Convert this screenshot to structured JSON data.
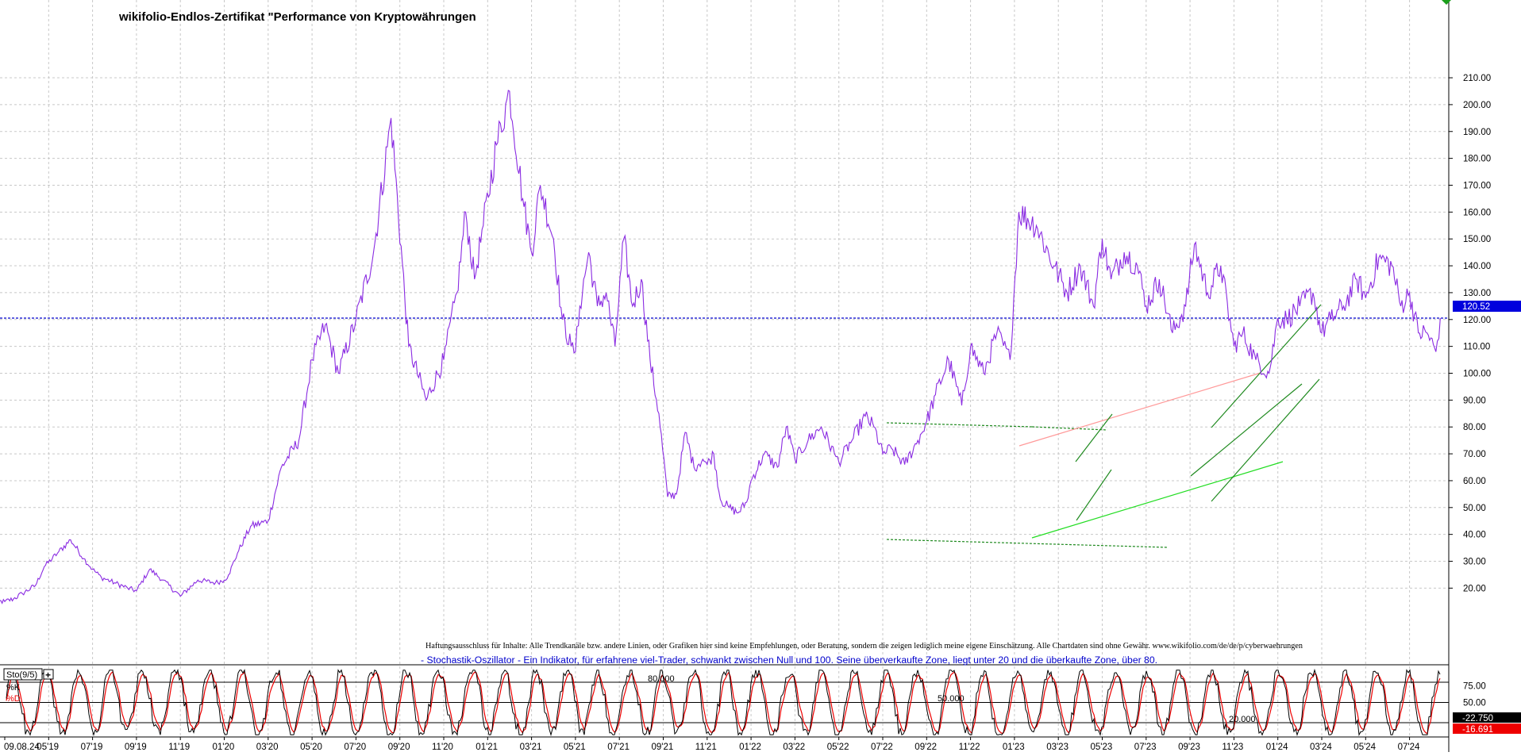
{
  "title": "wikifolio-Endlos-Zertifikat \"Performance von Kryptowährungen",
  "disclaimer": "Haftungsausschluss für Inhalte: Alle Trendkanäle bzw. andere Linien, oder Grafiken hier sind keine Empfehlungen, oder Beratung, sondern die zeigen lediglich meine eigene Einschätzung. Alle Chartdaten sind ohne Gewähr.  www.wikifolio.com/de/de/p/cyberwaehrungen",
  "stochastic_note": "- Stochastik-Oszillator - Ein Indikator, für erfahrene viel-Trader, schwankt zwischen Null und 100. Seine überverkaufte Zone, liegt unter 20 und die überkaufte Zone, über 80.",
  "colors": {
    "price": "#8a2be2",
    "current_line": "#0000cc",
    "current_label_bg": "#0000dd",
    "channel_dark": "#1f8a1f",
    "channel_bright": "#22dd22",
    "pink": "#ff9999",
    "k_line": "#000000",
    "d_line": "#ee0000",
    "grid": "#c8c8c8"
  },
  "chart_data": [
    {
      "type": "line",
      "title": "wikifolio-Endlos-Zertifikat \"Performance von Kryptowährungen",
      "xlabel": "",
      "ylabel": "",
      "x_ticks": [
        "09.08.24",
        "05'19",
        "07'19",
        "09'19",
        "11'19",
        "01'20",
        "03'20",
        "05'20",
        "07'20",
        "09'20",
        "11'20",
        "01'21",
        "03'21",
        "05'21",
        "07'21",
        "09'21",
        "11'21",
        "01'22",
        "03'22",
        "05'22",
        "07'22",
        "09'22",
        "11'22",
        "01'23",
        "03'23",
        "05'23",
        "07'23",
        "09'23",
        "11'23",
        "01'24",
        "03'24",
        "05'24",
        "07'24"
      ],
      "y_ticks": [
        "210.00",
        "200.00",
        "190.00",
        "180.00",
        "170.00",
        "160.00",
        "150.00",
        "140.00",
        "130.00",
        "120.00",
        "110.00",
        "100.00",
        "90.00",
        "80.00",
        "70.00",
        "60.00",
        "50.00",
        "40.00",
        "30.00",
        "20.00"
      ],
      "ylim": [
        12,
        214
      ],
      "grid": true,
      "current_value": 120.52,
      "current_value_label": "120.52",
      "series": [
        {
          "x": [
            -0.3,
            -0.15,
            0,
            0.2,
            0.4,
            0.7,
            0.9,
            1.2,
            1.5,
            1.8,
            2.0,
            2.2,
            2.5,
            2.8,
            3.0,
            3.3,
            3.6,
            4.0,
            4.4,
            4.8,
            5.0,
            5.1,
            5.3,
            5.6,
            6.0,
            6.3,
            6.7,
            7.0,
            7.3,
            7.6,
            8.0,
            8.4,
            8.8,
            9.2,
            9.6,
            10.0,
            10.3,
            10.5,
            10.7,
            10.9,
            11.2,
            11.5,
            11.8,
            12.0,
            12.2,
            12.5,
            12.7,
            12.9,
            13.0,
            13.1,
            13.3,
            13.5,
            13.7,
            13.9,
            14.1,
            14.3,
            14.5,
            14.7,
            14.9,
            15.1,
            15.3,
            15.5,
            15.7,
            15.9,
            16.0,
            16.15,
            16.3,
            16.5,
            16.7,
            16.9,
            17.0,
            17.3,
            17.6,
            17.8,
            18.0,
            18.3,
            18.6,
            18.9,
            19.0,
            19.3,
            19.6,
            19.8,
            20.0,
            20.2,
            20.5,
            20.8,
            21.0,
            21.2,
            21.5,
            21.8,
            22.0,
            22.3,
            22.6,
            22.9,
            23.1,
            23.5,
            23.9,
            24.2,
            24.5,
            24.8,
            25.0,
            25.2,
            25.5,
            25.8,
            26.0,
            26.3,
            26.6,
            26.9,
            27.1,
            27.4,
            27.7,
            28.0,
            28.2,
            28.5,
            28.8,
            29.0,
            29.2,
            29.5,
            29.8,
            30.0,
            30.2,
            30.5,
            30.8,
            31.0,
            31.3,
            31.6,
            31.8,
            32.0,
            32.2,
            32.4,
            32.6,
            32.7
          ],
          "values": [
            17,
            15,
            15,
            16,
            18,
            21,
            28,
            33,
            38,
            31,
            27,
            24,
            22,
            20,
            19,
            27,
            23,
            17,
            23,
            22,
            23,
            25,
            33,
            43,
            45,
            65,
            75,
            105,
            118,
            100,
            120,
            145,
            195,
            110,
            90,
            105,
            130,
            160,
            135,
            155,
            185,
            205,
            165,
            145,
            170,
            150,
            120,
            110,
            108,
            125,
            145,
            125,
            130,
            110,
            150,
            125,
            135,
            105,
            85,
            54,
            55,
            78,
            65,
            68,
            66,
            70,
            53,
            50,
            48,
            52,
            60,
            70,
            65,
            80,
            68,
            75,
            80,
            70,
            67,
            75,
            84,
            80,
            70,
            72,
            66,
            75,
            82,
            92,
            105,
            88,
            110,
            100,
            115,
            105,
            160,
            155,
            140,
            130,
            140,
            125,
            150,
            135,
            145,
            140,
            125,
            135,
            115,
            125,
            148,
            130,
            140,
            110,
            115,
            105,
            100,
            120.52,
            120,
            125,
            130,
            115,
            120,
            125,
            135,
            128,
            143,
            140,
            125,
            130,
            115,
            115,
            108,
            120.52
          ]
        }
      ],
      "trend_lines": true
    },
    {
      "type": "line",
      "title": "",
      "xlabel": "",
      "ylabel": "",
      "ylim": [
        0,
        100
      ],
      "y_ticks": [
        "75.00",
        "50.00"
      ],
      "levels_labels": [
        "80.000",
        "50.000",
        "20.000"
      ],
      "indicator_label": "Sto(9/5)",
      "series": [
        {
          "name": "%K",
          "current": -22.75,
          "current_label": "-22.750"
        },
        {
          "name": "%D",
          "current": -16.691,
          "current_label": "-16.691"
        }
      ]
    }
  ]
}
